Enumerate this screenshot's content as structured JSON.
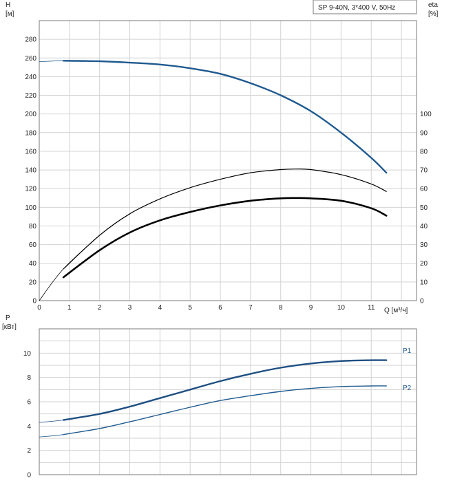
{
  "header": {
    "label": "SP 9-40N, 3*400 V, 50Hz"
  },
  "colors": {
    "blue": "#1f5a8f",
    "dark_blue": "#1e4f82",
    "black": "#000000",
    "grid": "#d2d2d2",
    "frame": "#7a7a7a"
  },
  "chart_data": [
    {
      "type": "line",
      "ylabel": "H",
      "yunit": "[м]",
      "y2label": "eta",
      "y2unit": "[%]",
      "xlabel": "Q [м³/ч]",
      "xlim": [
        0,
        12.5
      ],
      "ylim": [
        0,
        300
      ],
      "y2lim": [
        0,
        150
      ],
      "x_ticks": [
        0,
        1,
        2,
        3,
        4,
        5,
        6,
        7,
        8,
        9,
        10,
        11
      ],
      "y_ticks": [
        0,
        20,
        40,
        60,
        80,
        100,
        120,
        140,
        160,
        180,
        200,
        220,
        240,
        260,
        280
      ],
      "y2_ticks": [
        0,
        10,
        20,
        30,
        40,
        50,
        60,
        70,
        80,
        90,
        100
      ],
      "grid": true,
      "series": [
        {
          "axis": "left",
          "color": "#1f5a8f",
          "x": [
            0,
            0.8,
            2,
            3,
            4,
            5,
            6,
            7,
            8,
            9,
            10,
            11,
            11.5
          ],
          "y": [
            256,
            257,
            256.5,
            255,
            253,
            249,
            243,
            233,
            220,
            203,
            180,
            153,
            137
          ]
        },
        {
          "axis": "right",
          "color": "#000000",
          "x": [
            0,
            0.8,
            2,
            3,
            4,
            5,
            6,
            7,
            8,
            8.5,
            9,
            10,
            11,
            11.5
          ],
          "y": [
            0,
            17,
            35,
            46.5,
            54.5,
            60.5,
            65,
            68.5,
            70.2,
            70.5,
            70.2,
            67.5,
            62.5,
            58.5
          ]
        },
        {
          "axis": "right",
          "color": "#000000",
          "x": [
            0.8,
            2,
            3,
            4,
            5,
            6,
            7,
            8,
            8.5,
            9,
            10,
            11,
            11.5
          ],
          "y": [
            12.5,
            27,
            36.5,
            43,
            47.5,
            51,
            53.5,
            54.8,
            55,
            54.8,
            53.5,
            49.5,
            45.5
          ]
        }
      ]
    },
    {
      "type": "line",
      "ylabel": "P",
      "yunit": "[кВт]",
      "xlim": [
        0,
        12.5
      ],
      "ylim": [
        0,
        12
      ],
      "y_ticks": [
        0,
        2,
        4,
        6,
        8,
        10
      ],
      "grid": true,
      "series": [
        {
          "name": "P1",
          "color": "#1e4f82",
          "x": [
            0,
            0.8,
            2,
            3,
            4,
            5,
            6,
            7,
            8,
            9,
            10,
            11,
            11.5
          ],
          "y": [
            4.3,
            4.5,
            5.0,
            5.6,
            6.3,
            7.0,
            7.7,
            8.3,
            8.8,
            9.15,
            9.35,
            9.42,
            9.42
          ]
        },
        {
          "name": "P2",
          "color": "#1f5a8f",
          "x": [
            0,
            0.8,
            2,
            3,
            4,
            5,
            6,
            7,
            8,
            9,
            10,
            11,
            11.5
          ],
          "y": [
            3.1,
            3.3,
            3.8,
            4.35,
            4.95,
            5.55,
            6.1,
            6.5,
            6.85,
            7.1,
            7.25,
            7.3,
            7.3
          ]
        }
      ]
    }
  ]
}
